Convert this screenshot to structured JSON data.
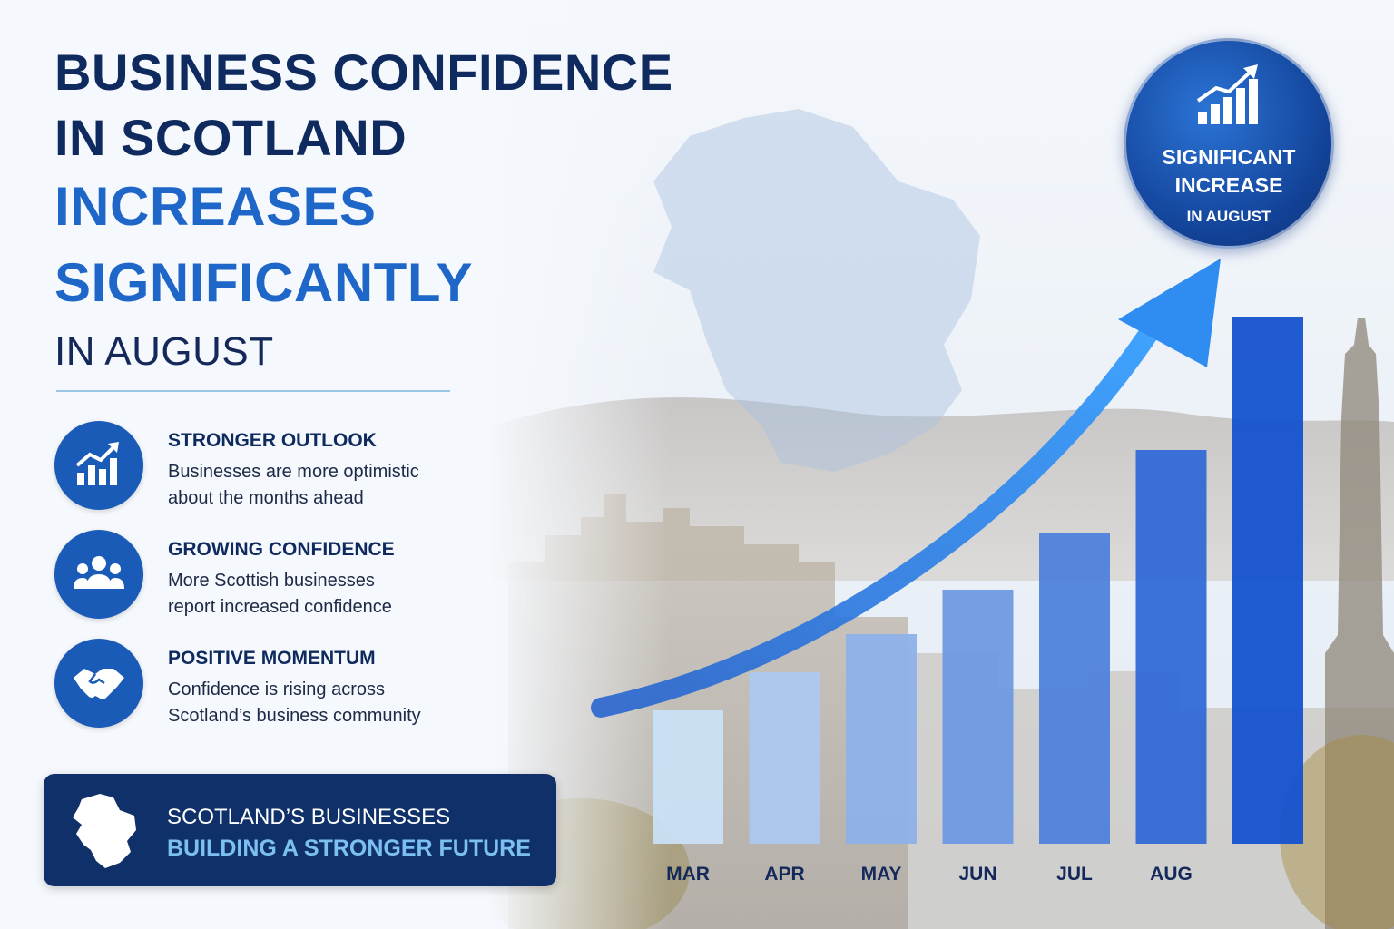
{
  "headline": {
    "line1": "BUSINESS CONFIDENCE",
    "line2": "IN SCOTLAND",
    "line3": "INCREASES",
    "line4": "SIGNIFICANTLY",
    "line5": "IN AUGUST"
  },
  "features": [
    {
      "icon": "growth-chart-icon",
      "title": "STRONGER OUTLOOK",
      "desc1": "Businesses are more optimistic",
      "desc2": "about the months ahead"
    },
    {
      "icon": "people-group-icon",
      "title": "GROWING CONFIDENCE",
      "desc1": "More Scottish businesses",
      "desc2": "report increased confidence"
    },
    {
      "icon": "handshake-icon",
      "title": "POSITIVE MOMENTUM",
      "desc1": "Confidence is rising across",
      "desc2": "Scotland’s business community"
    }
  ],
  "banner": {
    "line1": "SCOTLAND’S BUSINESSES",
    "line2": "BUILDING A STRONGER FUTURE",
    "icon": "scotland-map-icon"
  },
  "badge": {
    "line1": "SIGNIFICANT",
    "line2": "INCREASE",
    "line3": "IN AUGUST",
    "icon": "rising-bars-icon"
  },
  "colors": {
    "navy": "#0f2a5e",
    "accent_blue": "#1f66c9",
    "bar_lightest": "#c9e0f5",
    "bar_darkest": "#1452cf"
  },
  "chart_data": {
    "type": "bar",
    "categories": [
      "MAR",
      "APR",
      "MAY",
      "JUN",
      "JUL",
      "AUG",
      ""
    ],
    "values": [
      21,
      27,
      33,
      40,
      49,
      62,
      83
    ],
    "title": "",
    "xlabel": "",
    "ylabel": "",
    "ylim": [
      0,
      100
    ],
    "grid": false,
    "trend_arrow": true
  }
}
